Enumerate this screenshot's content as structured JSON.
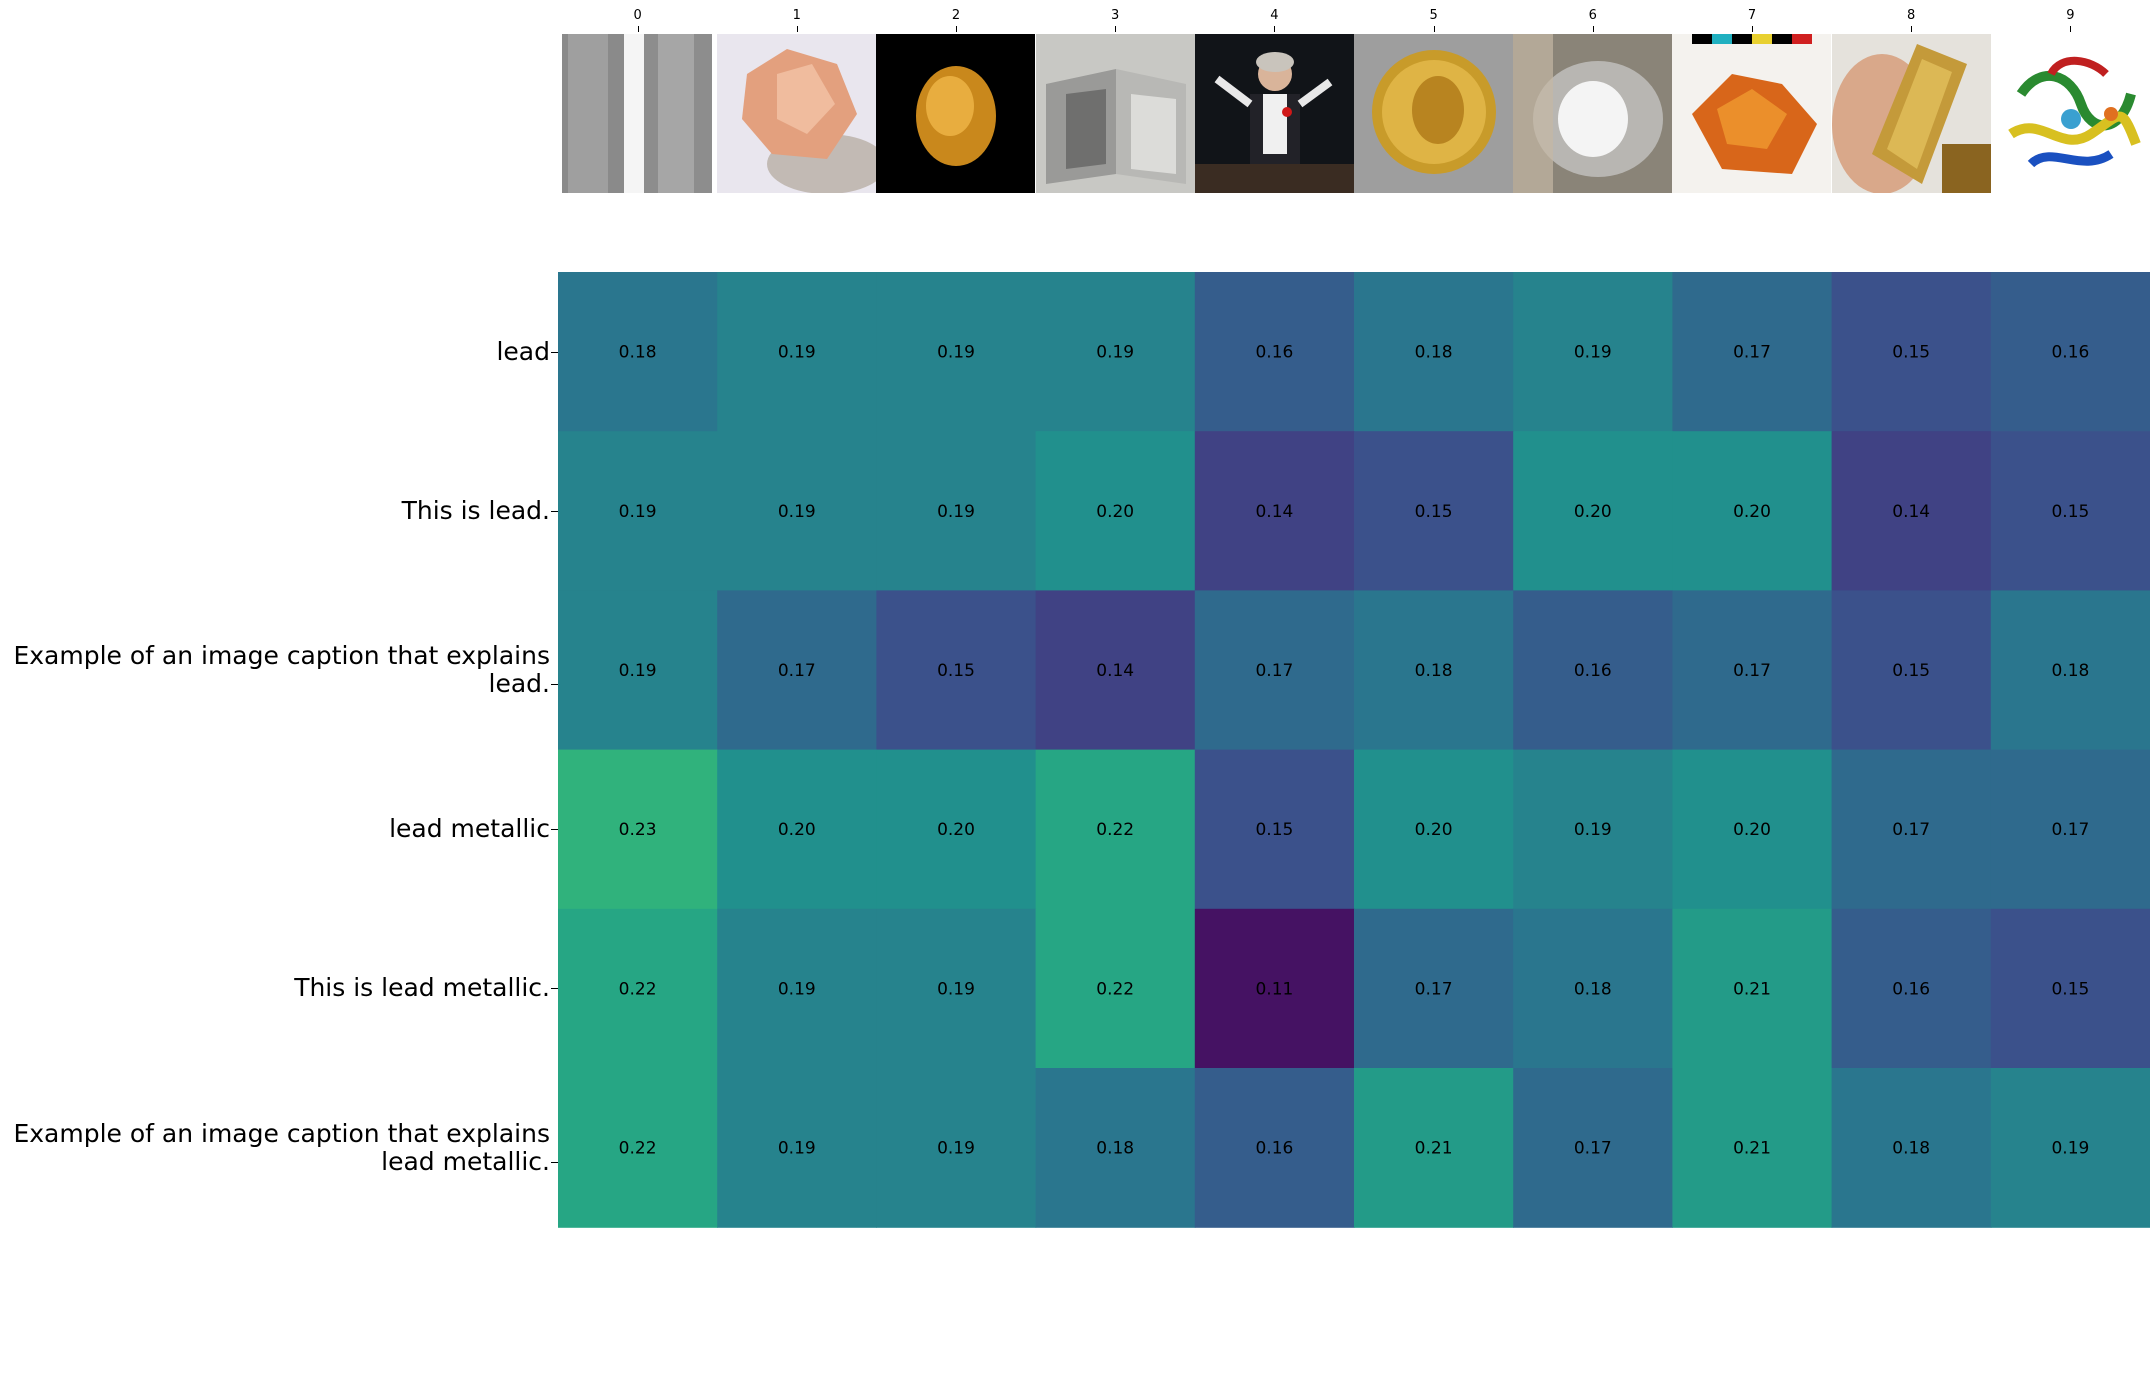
{
  "chart_data": {
    "type": "heatmap",
    "title": "",
    "xlabel": "",
    "ylabel": "",
    "x_tick_labels": [
      "0",
      "1",
      "2",
      "3",
      "4",
      "5",
      "6",
      "7",
      "8",
      "9"
    ],
    "y_tick_labels": [
      "lead",
      "This is lead.",
      "Example of an image caption that explains\nlead.",
      "lead metallic",
      "This is lead metallic.",
      "Example of an image caption that explains\nlead metallic."
    ],
    "values": [
      [
        0.18,
        0.19,
        0.19,
        0.19,
        0.16,
        0.18,
        0.19,
        0.17,
        0.15,
        0.16
      ],
      [
        0.19,
        0.19,
        0.19,
        0.2,
        0.14,
        0.15,
        0.2,
        0.2,
        0.14,
        0.15
      ],
      [
        0.19,
        0.17,
        0.15,
        0.14,
        0.17,
        0.18,
        0.16,
        0.17,
        0.15,
        0.18
      ],
      [
        0.23,
        0.2,
        0.2,
        0.22,
        0.15,
        0.2,
        0.19,
        0.2,
        0.17,
        0.17
      ],
      [
        0.22,
        0.19,
        0.19,
        0.22,
        0.11,
        0.17,
        0.18,
        0.21,
        0.16,
        0.15
      ],
      [
        0.22,
        0.19,
        0.19,
        0.18,
        0.16,
        0.21,
        0.17,
        0.21,
        0.18,
        0.19
      ]
    ],
    "colormap": "viridis",
    "color_range": [
      0.1,
      0.3
    ],
    "image_thumbnails": [
      "grey-metal-blades-icon",
      "pink-mineral-crystal-icon",
      "gold-nugget-icon",
      "metal-angle-profiles-icon",
      "orchestra-conductor-icon",
      "gold-coin-icon",
      "white-powder-on-spoon-icon",
      "orange-shards-with-scale-icon",
      "gold-bar-in-hand-icon",
      "protein-ribbon-structure-icon"
    ]
  }
}
